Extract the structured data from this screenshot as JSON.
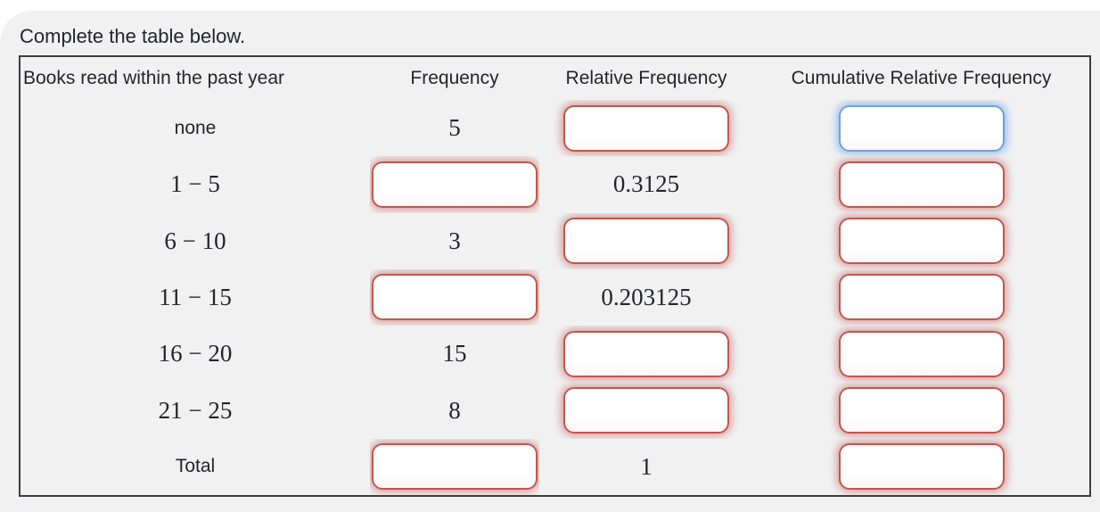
{
  "instruction": "Complete the table below.",
  "table": {
    "headers": [
      "Books read within the past year",
      "Frequency",
      "Relative Frequency",
      "Cumulative Relative Frequency"
    ],
    "rows": [
      {
        "label": "none",
        "frequency": "5",
        "relative_frequency": "",
        "cumulative_relative_frequency": ""
      },
      {
        "label": "1 − 5",
        "frequency": "",
        "relative_frequency": "0.3125",
        "cumulative_relative_frequency": ""
      },
      {
        "label": "6 − 10",
        "frequency": "3",
        "relative_frequency": "",
        "cumulative_relative_frequency": ""
      },
      {
        "label": "11 − 15",
        "frequency": "",
        "relative_frequency": "0.203125",
        "cumulative_relative_frequency": ""
      },
      {
        "label": "16 − 20",
        "frequency": "15",
        "relative_frequency": "",
        "cumulative_relative_frequency": ""
      },
      {
        "label": "21 − 25",
        "frequency": "8",
        "relative_frequency": "",
        "cumulative_relative_frequency": ""
      },
      {
        "label": "Total",
        "frequency": "",
        "relative_frequency": "1",
        "cumulative_relative_frequency": ""
      }
    ],
    "input_states": {
      "error_outline_color": "#c1564f",
      "focused_outline_color": "#67a5e0",
      "focused_cell": "cumulative relative frequency input, row none"
    }
  }
}
